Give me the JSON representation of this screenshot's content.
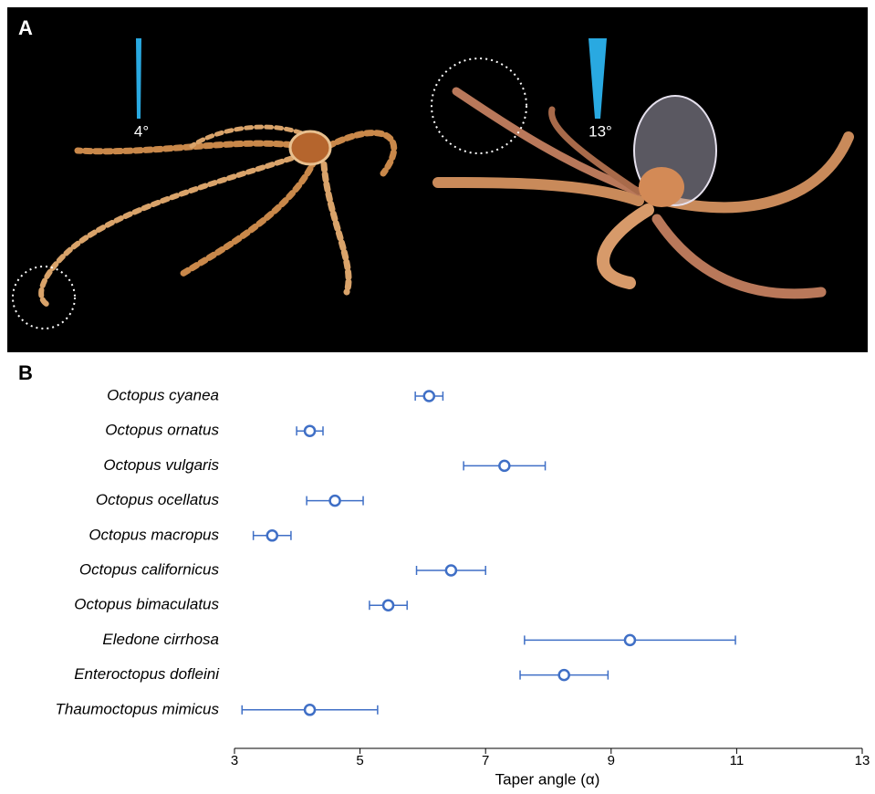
{
  "panel_a": {
    "label": "A",
    "angle_left": "4°",
    "angle_right": "13°"
  },
  "chart_data": {
    "type": "errorbar",
    "panel_label": "B",
    "x_label": "Taper angle (α)",
    "categories": [
      "Octopus cyanea",
      "Octopus ornatus",
      "Octopus vulgaris",
      "Octopus ocellatus",
      "Octopus macropus",
      "Octopus californicus",
      "Octopus bimaculatus",
      "Eledone cirrhosa",
      "Enteroctopus dofleini",
      "Thaumoctopus mimicus"
    ],
    "values": [
      6.1,
      4.2,
      7.3,
      4.6,
      3.6,
      6.45,
      5.45,
      9.3,
      8.25,
      4.2
    ],
    "errors": [
      0.22,
      0.21,
      0.65,
      0.45,
      0.3,
      0.55,
      0.3,
      1.68,
      0.7,
      1.08
    ],
    "color": "#3f6fc6",
    "xlim": [
      3,
      13
    ],
    "xticks": [
      3,
      5,
      7,
      9,
      11,
      13
    ]
  }
}
